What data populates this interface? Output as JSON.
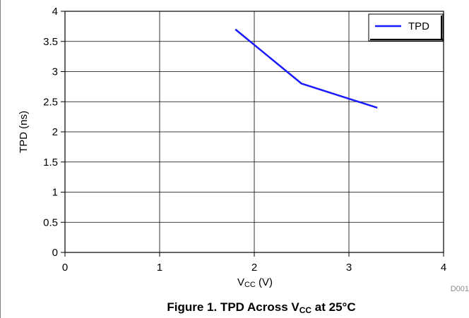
{
  "chart_data": {
    "type": "line",
    "xlabel": {
      "main": "V",
      "sub": "CC",
      "rest": " (V)"
    },
    "ylabel": "TPD (ns)",
    "xlim": [
      0,
      4
    ],
    "ylim": [
      0,
      4
    ],
    "x_ticks": [
      0,
      1,
      2,
      3,
      4
    ],
    "y_ticks": [
      0,
      0.5,
      1,
      1.5,
      2,
      2.5,
      3,
      3.5,
      4
    ],
    "x_tick_labels": [
      "0",
      "1",
      "2",
      "3",
      "4"
    ],
    "y_tick_labels": [
      "0",
      "0.5",
      "1",
      "1.5",
      "2",
      "2.5",
      "3",
      "3.5",
      "4"
    ],
    "grid": true,
    "legend_position": "top-right",
    "series": [
      {
        "name": "TPD",
        "color": "#1a1aff",
        "x": [
          1.8,
          2.5,
          3.3
        ],
        "y": [
          3.7,
          2.8,
          2.4
        ]
      }
    ],
    "figure_code": "D001",
    "caption": {
      "prefix": "Figure 1. TPD Across V",
      "sub": "CC",
      "suffix": " at 25°C"
    }
  }
}
